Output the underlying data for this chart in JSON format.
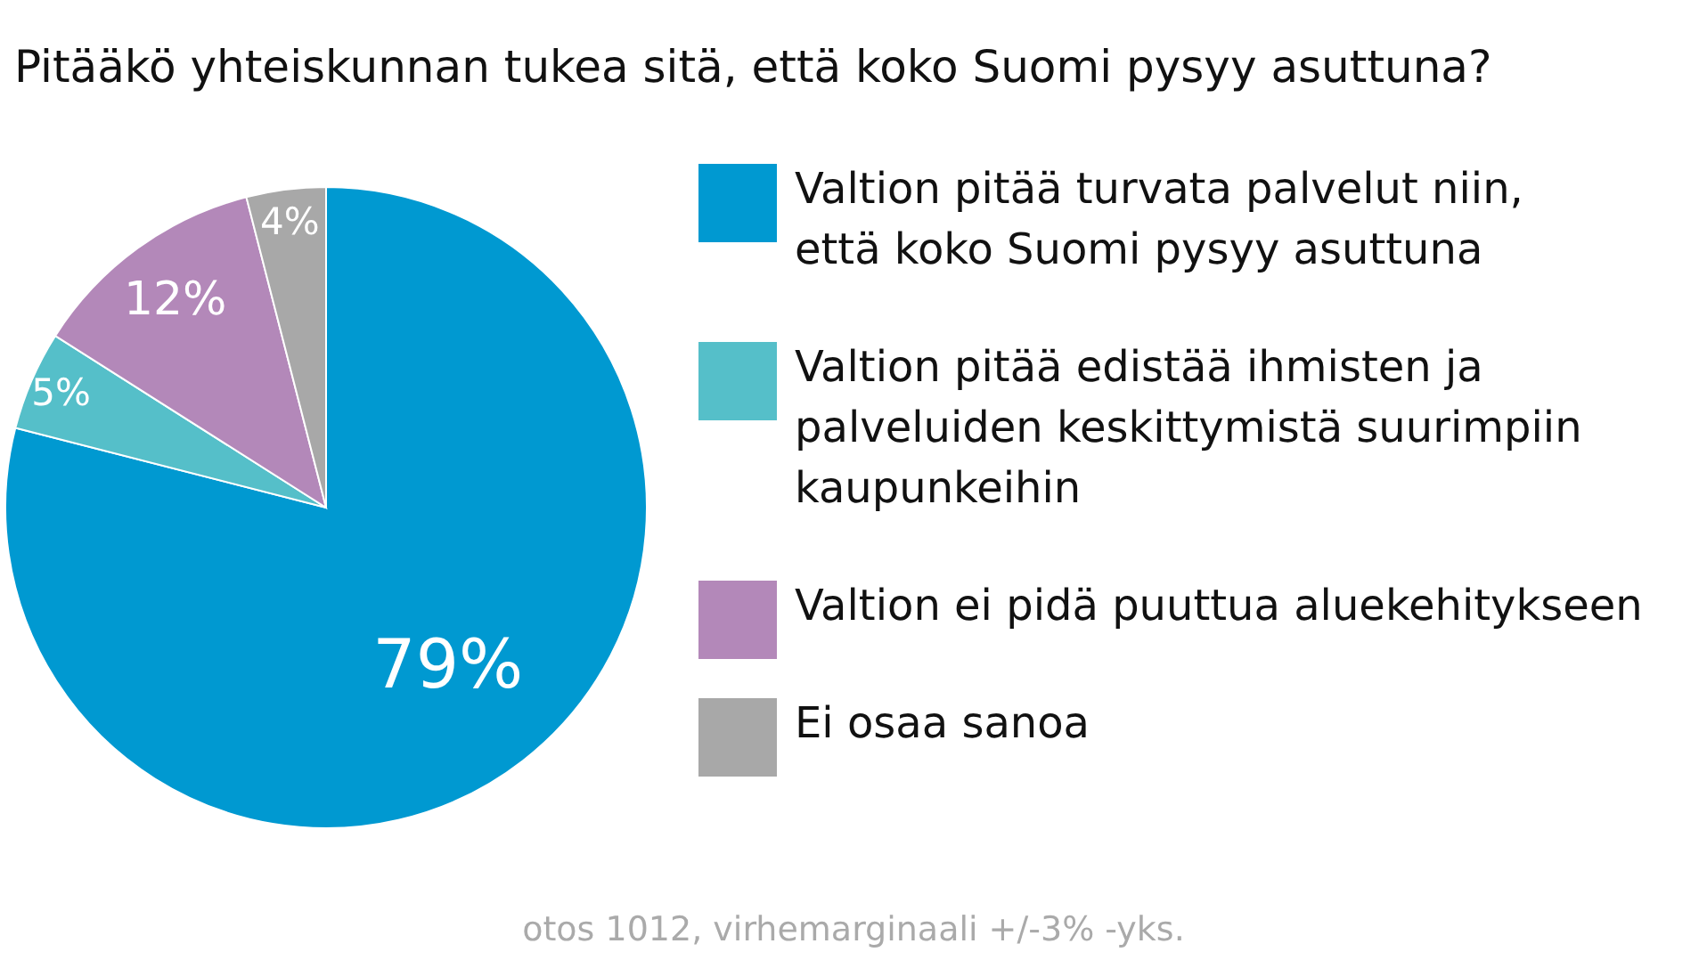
{
  "chart_data": {
    "type": "pie",
    "title": "Pitääkö yhteiskunnan tukea sitä, että koko Suomi pysyy asuttuna?",
    "categories": [
      "Valtion pitää turvata palvelut niin, että koko Suomi pysyy asuttuna",
      "Valtion pitää edistää ihmisten ja palveluiden keskittymistä suurimpiin kaupunkeihin",
      "Valtion ei pidä puuttua aluekehitykseen",
      "Ei osaa sanoa"
    ],
    "values": [
      79,
      5,
      12,
      4
    ],
    "colors": [
      "#0099d1",
      "#55bfc9",
      "#b388b9",
      "#a8a8a8"
    ],
    "value_labels": [
      "79%",
      "5%",
      "12%",
      "4%"
    ],
    "legend": "right",
    "annotations": [
      "otos 1012, virhemarginaali +/-3% -yks."
    ]
  }
}
